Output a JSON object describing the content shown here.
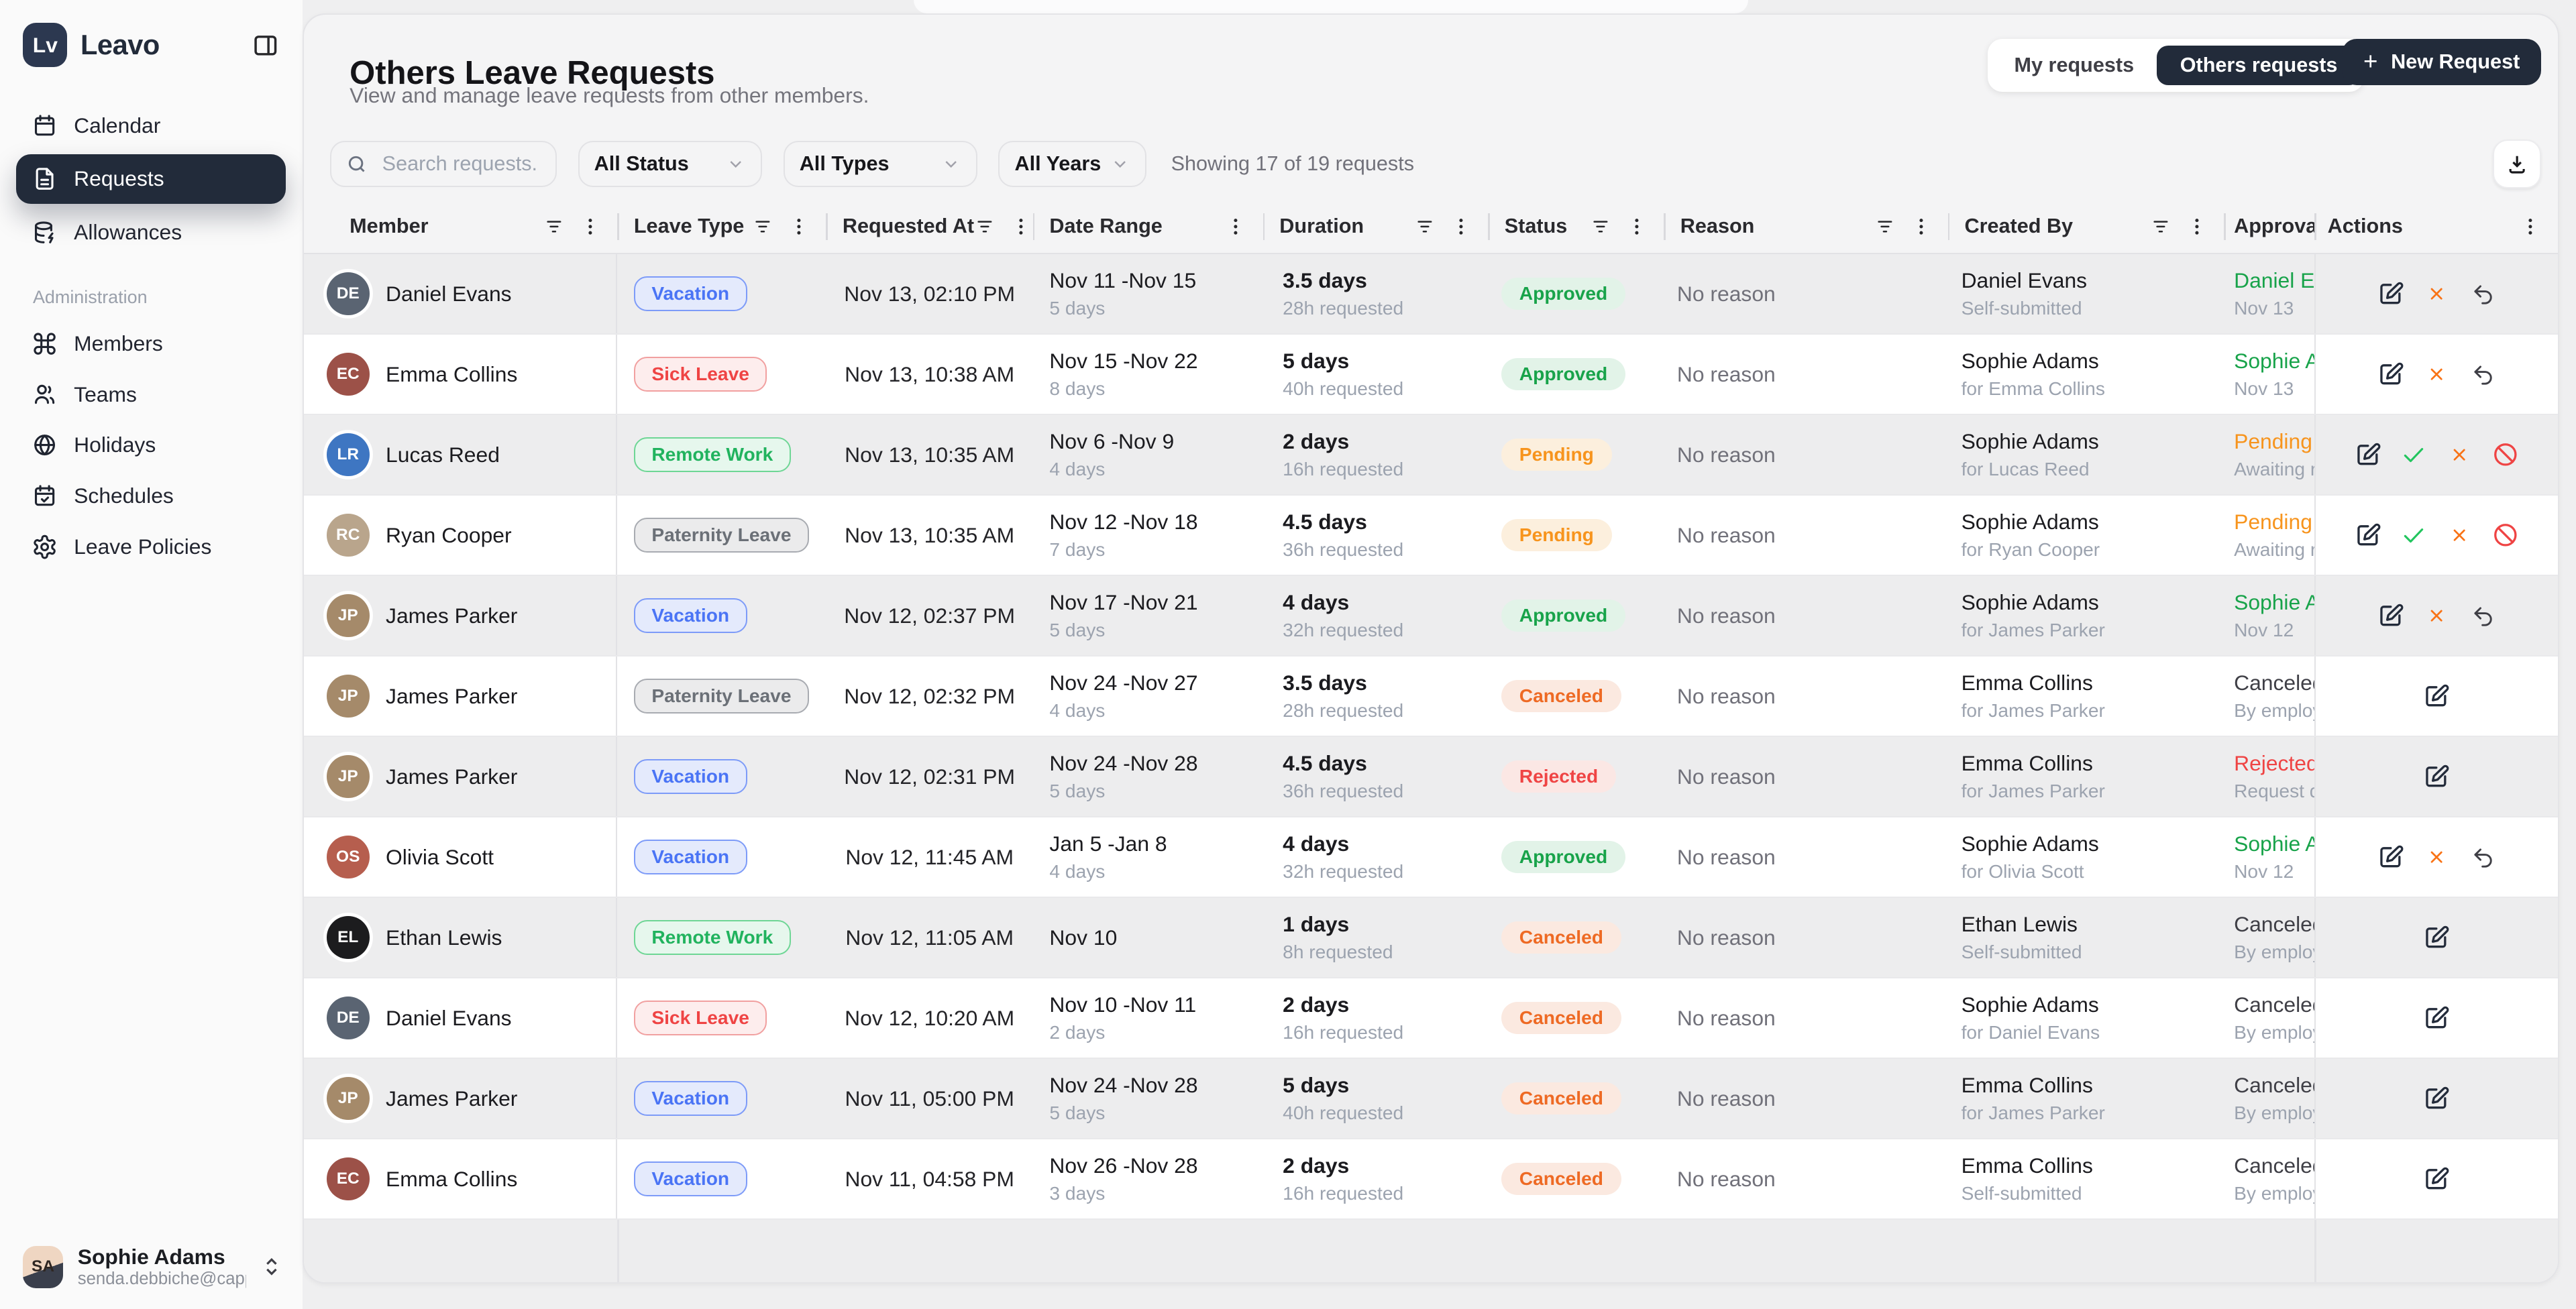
{
  "sidebar": {
    "brand": {
      "logo": "Lv",
      "name": "Leavo"
    },
    "nav": [
      {
        "label": "Calendar",
        "icon": "calendar-icon",
        "active": false
      },
      {
        "label": "Requests",
        "icon": "requests-icon",
        "active": true
      },
      {
        "label": "Allowances",
        "icon": "allowances-icon",
        "active": false
      }
    ],
    "section_label": "Administration",
    "admin_nav": [
      {
        "label": "Members",
        "icon": "members-icon"
      },
      {
        "label": "Teams",
        "icon": "teams-icon"
      },
      {
        "label": "Holidays",
        "icon": "holidays-icon"
      },
      {
        "label": "Schedules",
        "icon": "schedules-icon"
      },
      {
        "label": "Leave Policies",
        "icon": "leave-policies-icon"
      }
    ],
    "user": {
      "name": "Sophie Adams",
      "email": "senda.debbiche@cappsu...",
      "initials": "SA"
    }
  },
  "header": {
    "title": "Others Leave Requests",
    "subtitle": "View and manage leave requests from other members.",
    "tabs": [
      {
        "label": "My requests",
        "active": false
      },
      {
        "label": "Others requests",
        "active": true
      }
    ],
    "new_request": {
      "plus": "+",
      "label": "New Request"
    }
  },
  "filters": {
    "search_placeholder": "Search requests...",
    "status": "All Status",
    "types": "All Types",
    "years": "All Years",
    "summary": "Showing 17 of 19 requests"
  },
  "colors": {
    "brand_dark": "#222b3a",
    "approved": "#18a34a",
    "pending": "#f7941d",
    "canceled": "#ee6a24",
    "rejected": "#ef4444",
    "vacation": "#4a74f5",
    "sick_leave": "#ef4444",
    "remote_work": "#21b35e",
    "paternity_leave": "#6b7077"
  },
  "table": {
    "columns": [
      {
        "label": "Member",
        "filter": true,
        "kebab": true
      },
      {
        "label": "Leave Type",
        "filter": true,
        "kebab": true
      },
      {
        "label": "Requested At",
        "filter": true,
        "kebab": true
      },
      {
        "label": "Date Range",
        "filter": false,
        "kebab": true
      },
      {
        "label": "Duration",
        "filter": true,
        "kebab": true
      },
      {
        "label": "Status",
        "filter": true,
        "kebab": true
      },
      {
        "label": "Reason",
        "filter": true,
        "kebab": true
      },
      {
        "label": "Created By",
        "filter": true,
        "kebab": true
      },
      {
        "label": "Approval",
        "filter": false,
        "kebab": false
      },
      {
        "label": "Actions",
        "filter": false,
        "kebab": true
      }
    ],
    "action_sets": {
      "approved": [
        "edit-icon",
        "cancel-x-icon",
        "undo-icon"
      ],
      "pending": [
        "edit-icon",
        "approve-check-icon",
        "reject-x-icon",
        "ban-icon"
      ],
      "edit": [
        "edit-icon"
      ]
    },
    "rows": [
      {
        "member": "Daniel Evans",
        "initials": "DE",
        "avatar_bg": "#5a6472",
        "leave_type": "Vacation",
        "type_variant": "vacation",
        "requested_at": "Nov 13, 02:10 PM",
        "range": "Nov 11 -Nov 15",
        "range_sub": "5 days",
        "duration": "3.5 days",
        "duration_sub": "28h requested",
        "status": "Approved",
        "status_variant": "approved",
        "reason": "No reason",
        "created_by": "Daniel Evans",
        "created_sub": "Self-submitted",
        "approval_1": "Daniel Ev",
        "approval_variant": "a-green",
        "approval_2": "Nov 13",
        "actions": "approved"
      },
      {
        "member": "Emma Collins",
        "initials": "EC",
        "avatar_bg": "#9c5148",
        "leave_type": "Sick Leave",
        "type_variant": "sick",
        "requested_at": "Nov 13, 10:38 AM",
        "range": "Nov 15 -Nov 22",
        "range_sub": "8 days",
        "duration": "5 days",
        "duration_sub": "40h requested",
        "status": "Approved",
        "status_variant": "approved",
        "reason": "No reason",
        "created_by": "Sophie Adams",
        "created_sub": "for Emma Collins",
        "approval_1": "Sophie A",
        "approval_variant": "a-green",
        "approval_2": "Nov 13",
        "actions": "approved"
      },
      {
        "member": "Lucas Reed",
        "initials": "LR",
        "avatar_bg": "#3e76c2",
        "leave_type": "Remote Work",
        "type_variant": "remote",
        "requested_at": "Nov 13, 10:35 AM",
        "range": "Nov 6 -Nov 9",
        "range_sub": "4 days",
        "duration": "2 days",
        "duration_sub": "16h requested",
        "status": "Pending",
        "status_variant": "pending",
        "reason": "No reason",
        "created_by": "Sophie Adams",
        "created_sub": "for Lucas Reed",
        "approval_1": "Pending",
        "approval_variant": "a-orange",
        "approval_2": "Awaiting re",
        "actions": "pending"
      },
      {
        "member": "Ryan Cooper",
        "initials": "RC",
        "avatar_bg": "#b9a58c",
        "leave_type": "Paternity Leave",
        "type_variant": "paternity",
        "requested_at": "Nov 13, 10:35 AM",
        "range": "Nov 12 -Nov 18",
        "range_sub": "7 days",
        "duration": "4.5 days",
        "duration_sub": "36h requested",
        "status": "Pending",
        "status_variant": "pending",
        "reason": "No reason",
        "created_by": "Sophie Adams",
        "created_sub": "for Ryan Cooper",
        "approval_1": "Pending",
        "approval_variant": "a-orange",
        "approval_2": "Awaiting re",
        "actions": "pending"
      },
      {
        "member": "James Parker",
        "initials": "JP",
        "avatar_bg": "#a58a6a",
        "leave_type": "Vacation",
        "type_variant": "vacation",
        "requested_at": "Nov 12, 02:37 PM",
        "range": "Nov 17 -Nov 21",
        "range_sub": "5 days",
        "duration": "4 days",
        "duration_sub": "32h requested",
        "status": "Approved",
        "status_variant": "approved",
        "reason": "No reason",
        "created_by": "Sophie Adams",
        "created_sub": "for James Parker",
        "approval_1": "Sophie A",
        "approval_variant": "a-green",
        "approval_2": "Nov 12",
        "actions": "approved"
      },
      {
        "member": "James Parker",
        "initials": "JP",
        "avatar_bg": "#a58a6a",
        "leave_type": "Paternity Leave",
        "type_variant": "paternity",
        "requested_at": "Nov 12, 02:32 PM",
        "range": "Nov 24 -Nov 27",
        "range_sub": "4 days",
        "duration": "3.5 days",
        "duration_sub": "28h requested",
        "status": "Canceled",
        "status_variant": "canceled",
        "reason": "No reason",
        "created_by": "Emma Collins",
        "created_sub": "for James Parker",
        "approval_1": "Canceled",
        "approval_variant": "a-dark",
        "approval_2": "By employ",
        "actions": "edit"
      },
      {
        "member": "James Parker",
        "initials": "JP",
        "avatar_bg": "#a58a6a",
        "leave_type": "Vacation",
        "type_variant": "vacation",
        "requested_at": "Nov 12, 02:31 PM",
        "range": "Nov 24 -Nov 28",
        "range_sub": "5 days",
        "duration": "4.5 days",
        "duration_sub": "36h requested",
        "status": "Rejected",
        "status_variant": "rejected",
        "reason": "No reason",
        "created_by": "Emma Collins",
        "created_sub": "for James Parker",
        "approval_1": "Rejected",
        "approval_variant": "a-red",
        "approval_2": "Request d",
        "actions": "edit"
      },
      {
        "member": "Olivia Scott",
        "initials": "OS",
        "avatar_bg": "#b65e4e",
        "leave_type": "Vacation",
        "type_variant": "vacation",
        "requested_at": "Nov 12, 11:45 AM",
        "range": "Jan 5 -Jan 8",
        "range_sub": "4 days",
        "duration": "4 days",
        "duration_sub": "32h requested",
        "status": "Approved",
        "status_variant": "approved",
        "reason": "No reason",
        "created_by": "Sophie Adams",
        "created_sub": "for Olivia Scott",
        "approval_1": "Sophie A",
        "approval_variant": "a-green",
        "approval_2": "Nov 12",
        "actions": "approved"
      },
      {
        "member": "Ethan Lewis",
        "initials": "EL",
        "avatar_bg": "#1c1c1e",
        "leave_type": "Remote Work",
        "type_variant": "remote",
        "requested_at": "Nov 12, 11:05 AM",
        "range": "Nov 10",
        "range_sub": "",
        "duration": "1 days",
        "duration_sub": "8h requested",
        "status": "Canceled",
        "status_variant": "canceled",
        "reason": "No reason",
        "created_by": "Ethan Lewis",
        "created_sub": "Self-submitted",
        "approval_1": "Canceled",
        "approval_variant": "a-dark",
        "approval_2": "By employ",
        "actions": "edit"
      },
      {
        "member": "Daniel Evans",
        "initials": "DE",
        "avatar_bg": "#5a6472",
        "leave_type": "Sick Leave",
        "type_variant": "sick",
        "requested_at": "Nov 12, 10:20 AM",
        "range": "Nov 10 -Nov 11",
        "range_sub": "2 days",
        "duration": "2 days",
        "duration_sub": "16h requested",
        "status": "Canceled",
        "status_variant": "canceled",
        "reason": "No reason",
        "created_by": "Sophie Adams",
        "created_sub": "for Daniel Evans",
        "approval_1": "Canceled",
        "approval_variant": "a-dark",
        "approval_2": "By employ",
        "actions": "edit"
      },
      {
        "member": "James Parker",
        "initials": "JP",
        "avatar_bg": "#a58a6a",
        "leave_type": "Vacation",
        "type_variant": "vacation",
        "requested_at": "Nov 11, 05:00 PM",
        "range": "Nov 24 -Nov 28",
        "range_sub": "5 days",
        "duration": "5 days",
        "duration_sub": "40h requested",
        "status": "Canceled",
        "status_variant": "canceled",
        "reason": "No reason",
        "created_by": "Emma Collins",
        "created_sub": "for James Parker",
        "approval_1": "Canceled",
        "approval_variant": "a-dark",
        "approval_2": "By employ",
        "actions": "edit"
      },
      {
        "member": "Emma Collins",
        "initials": "EC",
        "avatar_bg": "#9c5148",
        "leave_type": "Vacation",
        "type_variant": "vacation",
        "requested_at": "Nov 11, 04:58 PM",
        "range": "Nov 26 -Nov 28",
        "range_sub": "3 days",
        "duration": "2 days",
        "duration_sub": "16h requested",
        "status": "Canceled",
        "status_variant": "canceled",
        "reason": "No reason",
        "created_by": "Emma Collins",
        "created_sub": "Self-submitted",
        "approval_1": "Canceled",
        "approval_variant": "a-dark",
        "approval_2": "By employ",
        "actions": "edit"
      }
    ]
  }
}
